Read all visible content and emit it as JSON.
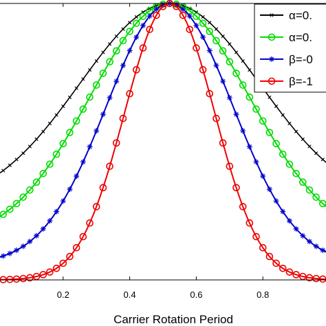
{
  "chart_data": {
    "type": "line",
    "title": "",
    "xlabel": "Carrier Rotation Period",
    "ylabel": "",
    "xlim": [
      0,
      1
    ],
    "ylim": [
      0,
      1
    ],
    "x_ticks": [
      0.2,
      0.4,
      0.6,
      0.8
    ],
    "x_tick_labels": [
      "0.2",
      "0.4",
      "0.6",
      "0.8"
    ],
    "grid": false,
    "legend_position": "top-right",
    "peak_x": 0.52,
    "series": [
      {
        "name": "α=0.",
        "color": "#000000",
        "marker": "x",
        "baseline": 0.263,
        "sigma": 0.27,
        "x": [
          0.0,
          0.02,
          0.04,
          0.06,
          0.08,
          0.1,
          0.12,
          0.14,
          0.16,
          0.18,
          0.2,
          0.22,
          0.24,
          0.26,
          0.28,
          0.3,
          0.32,
          0.34,
          0.36,
          0.38,
          0.4,
          0.42,
          0.44,
          0.46,
          0.48,
          0.5,
          0.52,
          0.54,
          0.56,
          0.58,
          0.6,
          0.62,
          0.64,
          0.66,
          0.68,
          0.7,
          0.72,
          0.74,
          0.76,
          0.78,
          0.8,
          0.82,
          0.84,
          0.86,
          0.88,
          0.9,
          0.92,
          0.94,
          0.96,
          0.98,
          1.0
        ]
      },
      {
        "name": "α=0.",
        "color": "#00dd00",
        "marker": "o",
        "baseline": 0.139,
        "sigma": 0.24,
        "x": [
          0.0,
          0.02,
          0.04,
          0.06,
          0.08,
          0.1,
          0.12,
          0.14,
          0.16,
          0.18,
          0.2,
          0.22,
          0.24,
          0.26,
          0.28,
          0.3,
          0.32,
          0.34,
          0.36,
          0.38,
          0.4,
          0.42,
          0.44,
          0.46,
          0.48,
          0.5,
          0.52,
          0.54,
          0.56,
          0.58,
          0.6,
          0.62,
          0.64,
          0.66,
          0.68,
          0.7,
          0.72,
          0.74,
          0.76,
          0.78,
          0.8,
          0.82,
          0.84,
          0.86,
          0.88,
          0.9,
          0.92,
          0.94,
          0.96,
          0.98,
          1.0
        ]
      },
      {
        "name": "β=-0",
        "color": "#0000cc",
        "marker": "*",
        "baseline": 0.057,
        "sigma": 0.19,
        "x": [
          0.0,
          0.02,
          0.04,
          0.06,
          0.08,
          0.1,
          0.12,
          0.14,
          0.16,
          0.18,
          0.2,
          0.22,
          0.24,
          0.26,
          0.28,
          0.3,
          0.32,
          0.34,
          0.36,
          0.38,
          0.4,
          0.42,
          0.44,
          0.46,
          0.48,
          0.5,
          0.52,
          0.54,
          0.56,
          0.58,
          0.6,
          0.62,
          0.64,
          0.66,
          0.68,
          0.7,
          0.72,
          0.74,
          0.76,
          0.78,
          0.8,
          0.82,
          0.84,
          0.86,
          0.88,
          0.9,
          0.92,
          0.94,
          0.96,
          0.98,
          1.0
        ]
      },
      {
        "name": "β=-1",
        "color": "#ee0000",
        "marker": "o",
        "baseline": 0.0,
        "sigma": 0.135,
        "x": [
          0.0,
          0.02,
          0.04,
          0.06,
          0.08,
          0.1,
          0.12,
          0.14,
          0.16,
          0.18,
          0.2,
          0.22,
          0.24,
          0.26,
          0.28,
          0.3,
          0.32,
          0.34,
          0.36,
          0.38,
          0.4,
          0.42,
          0.44,
          0.46,
          0.48,
          0.5,
          0.52,
          0.54,
          0.56,
          0.58,
          0.6,
          0.62,
          0.64,
          0.66,
          0.68,
          0.7,
          0.72,
          0.74,
          0.76,
          0.78,
          0.8,
          0.82,
          0.84,
          0.86,
          0.88,
          0.9,
          0.92,
          0.94,
          0.96,
          0.98,
          1.0
        ]
      }
    ]
  }
}
